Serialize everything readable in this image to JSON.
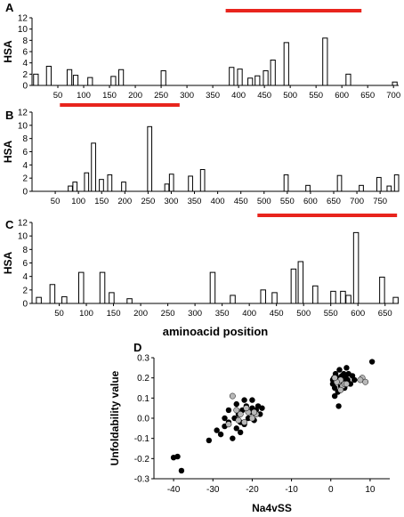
{
  "chart_data": [
    {
      "panel": "A",
      "type": "bar",
      "ylabel": "HSA",
      "ylim": [
        0,
        12
      ],
      "yticks": [
        0,
        2,
        4,
        6,
        8,
        10,
        12
      ],
      "xlim": [
        0,
        710
      ],
      "xticks": [
        50,
        100,
        150,
        200,
        250,
        300,
        350,
        400,
        450,
        500,
        550,
        600,
        650,
        700
      ],
      "x": [
        3,
        28,
        68,
        80,
        108,
        153,
        168,
        250,
        382,
        398,
        418,
        432,
        448,
        462,
        488,
        563,
        608,
        698
      ],
      "values": [
        2.0,
        3.4,
        2.8,
        1.8,
        1.4,
        1.6,
        2.8,
        2.6,
        3.2,
        2.9,
        1.3,
        1.7,
        2.6,
        4.5,
        7.6,
        8.4,
        2.0,
        0.6
      ],
      "region_line": [
        375,
        638
      ]
    },
    {
      "panel": "B",
      "type": "bar",
      "ylabel": "HSA",
      "ylim": [
        0,
        12
      ],
      "yticks": [
        0,
        2,
        4,
        6,
        8,
        10,
        12
      ],
      "xlim": [
        0,
        790
      ],
      "xticks": [
        50,
        100,
        150,
        200,
        250,
        300,
        350,
        400,
        450,
        500,
        550,
        600,
        650,
        700,
        750
      ],
      "x": [
        78,
        88,
        113,
        128,
        145,
        163,
        193,
        249,
        286,
        296,
        337,
        363,
        543,
        590,
        658,
        705,
        743,
        765,
        781
      ],
      "values": [
        0.8,
        1.4,
        2.8,
        7.3,
        1.8,
        2.5,
        1.4,
        9.8,
        1.1,
        2.6,
        2.3,
        3.3,
        2.5,
        0.9,
        2.4,
        0.9,
        2.1,
        0.8,
        2.5
      ],
      "region_line": [
        60,
        318
      ]
    },
    {
      "panel": "C",
      "type": "bar",
      "xlabel": "aminoacid position",
      "ylabel": "HSA",
      "ylim": [
        0,
        12
      ],
      "yticks": [
        0,
        2,
        4,
        6,
        8,
        10,
        12
      ],
      "xlim": [
        0,
        675
      ],
      "xticks": [
        50,
        100,
        150,
        200,
        250,
        300,
        350,
        400,
        450,
        500,
        550,
        600,
        650
      ],
      "x": [
        8,
        33,
        55,
        86,
        125,
        142,
        175,
        328,
        365,
        421,
        442,
        477,
        490,
        517,
        550,
        568,
        578,
        592,
        640,
        665
      ],
      "values": [
        0.9,
        2.8,
        1.0,
        4.6,
        4.6,
        1.6,
        0.7,
        4.6,
        1.2,
        2.0,
        1.6,
        5.1,
        6.2,
        2.6,
        1.8,
        1.8,
        1.2,
        10.5,
        3.9,
        0.9
      ],
      "region_line": [
        415,
        672
      ]
    },
    {
      "panel": "D",
      "type": "scatter",
      "xlabel": "Na4vSS",
      "ylabel": "Unfoldability value",
      "xlim": [
        -45,
        15
      ],
      "ylim": [
        -0.3,
        0.3
      ],
      "xticks": [
        -40,
        -30,
        -20,
        -10,
        0,
        10
      ],
      "yticks": [
        -0.3,
        -0.2,
        -0.1,
        0.0,
        0.1,
        0.2,
        0.3
      ],
      "series": [
        {
          "color": "#000000",
          "points": [
            [
              -40,
              -0.195
            ],
            [
              -39,
              -0.19
            ],
            [
              -38,
              -0.26
            ],
            [
              -31,
              -0.11
            ],
            [
              -29,
              -0.06
            ],
            [
              -28,
              -0.08
            ],
            [
              -27,
              -0.04
            ],
            [
              -26,
              -0.02
            ],
            [
              -25,
              -0.1
            ],
            [
              -24.5,
              0.0
            ],
            [
              -24,
              -0.05
            ],
            [
              -23.5,
              0.02
            ],
            [
              -23,
              -0.07
            ],
            [
              -22.5,
              0.04
            ],
            [
              -22,
              -0.03
            ],
            [
              -21.5,
              0.06
            ],
            [
              -21,
              0.0
            ],
            [
              -20.5,
              0.03
            ],
            [
              -20,
              0.05
            ],
            [
              -19.5,
              -0.01
            ],
            [
              -19,
              0.04
            ],
            [
              -18.5,
              0.06
            ],
            [
              -18,
              0.02
            ],
            [
              -17.5,
              0.05
            ],
            [
              -24,
              0.07
            ],
            [
              -26,
              0.04
            ],
            [
              -22,
              0.09
            ],
            [
              -20,
              0.09
            ],
            [
              -27,
              0.0
            ],
            [
              -23,
              -0.02
            ],
            [
              0.5,
              0.17
            ],
            [
              0.8,
              0.2
            ],
            [
              1.0,
              0.15
            ],
            [
              1.2,
              0.22
            ],
            [
              1.5,
              0.18
            ],
            [
              1.8,
              0.13
            ],
            [
              2.0,
              0.2
            ],
            [
              2.2,
              0.24
            ],
            [
              2.5,
              0.16
            ],
            [
              2.8,
              0.21
            ],
            [
              3.0,
              0.18
            ],
            [
              3.3,
              0.22
            ],
            [
              3.5,
              0.15
            ],
            [
              3.8,
              0.2
            ],
            [
              4.0,
              0.25
            ],
            [
              4.3,
              0.19
            ],
            [
              4.5,
              0.22
            ],
            [
              5.0,
              0.17
            ],
            [
              5.5,
              0.21
            ],
            [
              6.0,
              0.19
            ],
            [
              2.0,
              0.06
            ],
            [
              10.5,
              0.28
            ],
            [
              1.0,
              0.11
            ],
            [
              0.5,
              0.19
            ]
          ]
        },
        {
          "color": "#b8b8b8",
          "points": [
            [
              -25,
              0.11
            ],
            [
              -24,
              0.04
            ],
            [
              -23,
              0.02
            ],
            [
              -22,
              -0.02
            ],
            [
              -21,
              0.03
            ],
            [
              -20,
              0.0
            ],
            [
              -19,
              0.02
            ],
            [
              -23.5,
              -0.01
            ],
            [
              -21.5,
              0.05
            ],
            [
              -19.5,
              0.03
            ],
            [
              -26,
              -0.03
            ],
            [
              2.0,
              0.18
            ],
            [
              2.5,
              0.19
            ],
            [
              3.0,
              0.16
            ],
            [
              3.5,
              0.17
            ],
            [
              1.5,
              0.18
            ],
            [
              4.0,
              0.17
            ],
            [
              8.0,
              0.2
            ],
            [
              8.8,
              0.18
            ],
            [
              7.5,
              0.19
            ],
            [
              2.5,
              0.14
            ],
            [
              1.0,
              0.2
            ]
          ]
        }
      ]
    }
  ]
}
